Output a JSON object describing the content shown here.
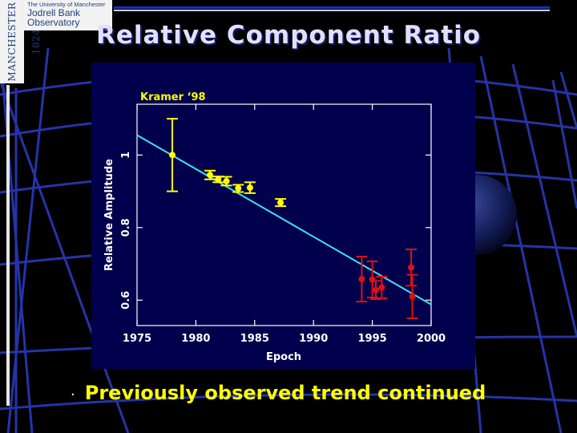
{
  "logo": {
    "vertical_text": "MANCHESTER 1824",
    "line1": "The University of Manchester",
    "line2": "Jodrell Bank",
    "line3": "Observatory"
  },
  "slide": {
    "title": "Relative Component Ratio",
    "bullet_marker": "·",
    "bullet_text": "Previously observed trend continued"
  },
  "colors": {
    "panel_background": "#00004c",
    "fit_line": "#40e0f0",
    "kramer_points": "#ffff00",
    "new_points": "#e01010",
    "title_text": "#dfe0ff"
  },
  "chart_data": {
    "type": "scatter",
    "title": "",
    "annotation": "Kramer ‘98",
    "xlabel": "Epoch",
    "ylabel": "Relative Amplitude",
    "xlim": [
      1975,
      2000
    ],
    "ylim": [
      0.53,
      1.14
    ],
    "xticks": [
      1975,
      1980,
      1985,
      1990,
      1995,
      2000
    ],
    "yticks": [
      0.6,
      0.8,
      1.0
    ],
    "ytick_labels": [
      "0.6",
      "0.8",
      "1"
    ],
    "grid": false,
    "series": [
      {
        "points": [
          {
            "x": 1978.0,
            "y": 1.0,
            "err": 0.1
          },
          {
            "x": 1981.2,
            "y": 0.945,
            "err": 0.012
          },
          {
            "x": 1981.9,
            "y": 0.933,
            "err": 0.008
          },
          {
            "x": 1982.6,
            "y": 0.928,
            "err": 0.012
          },
          {
            "x": 1983.6,
            "y": 0.908,
            "err": 0.01
          },
          {
            "x": 1984.6,
            "y": 0.91,
            "err": 0.015
          },
          {
            "x": 1987.2,
            "y": 0.869,
            "err": 0.01
          }
        ]
      },
      {
        "points": [
          {
            "x": 1994.1,
            "y": 0.658,
            "err": 0.062
          },
          {
            "x": 1995.0,
            "y": 0.657,
            "err": 0.05
          },
          {
            "x": 1995.3,
            "y": 0.628,
            "err": 0.025
          },
          {
            "x": 1995.8,
            "y": 0.635,
            "err": 0.03
          },
          {
            "x": 1998.3,
            "y": 0.69,
            "err": 0.05
          },
          {
            "x": 1998.4,
            "y": 0.61,
            "err": 0.06
          }
        ]
      }
    ],
    "fit_line": {
      "x": [
        1975,
        2000
      ],
      "y": [
        1.055,
        0.588
      ]
    }
  }
}
